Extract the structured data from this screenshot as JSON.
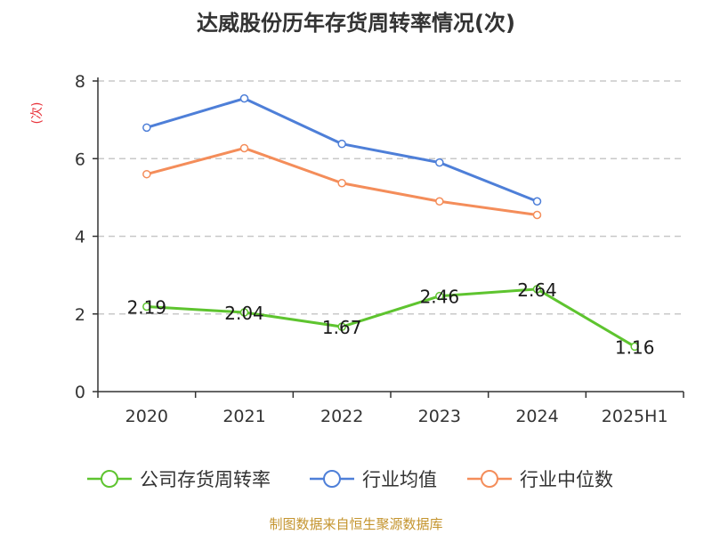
{
  "chart_data": {
    "type": "line",
    "title": "达威股份历年存货周转率情况(次)",
    "ylabel": "(次)",
    "categories": [
      "2020",
      "2021",
      "2022",
      "2023",
      "2024",
      "2025H1"
    ],
    "ylim": [
      0,
      8
    ],
    "yticks": [
      0,
      2,
      4,
      6,
      8
    ],
    "grid": true,
    "legend_position": "bottom",
    "series": [
      {
        "name": "公司存货周转率",
        "color": "#5ec42f",
        "values": [
          2.19,
          2.04,
          1.67,
          2.46,
          2.64,
          1.16
        ],
        "labels": [
          "2.19",
          "2.04",
          "1.67",
          "2.46",
          "2.64",
          "1.16"
        ]
      },
      {
        "name": "行业均值",
        "color": "#4e7fd8",
        "values": [
          6.8,
          7.55,
          6.38,
          5.9,
          4.9,
          null
        ]
      },
      {
        "name": "行业中位数",
        "color": "#f48d5a",
        "values": [
          5.6,
          6.27,
          5.37,
          4.9,
          4.55,
          null
        ]
      }
    ]
  },
  "source": "制图数据来自恒生聚源数据库"
}
